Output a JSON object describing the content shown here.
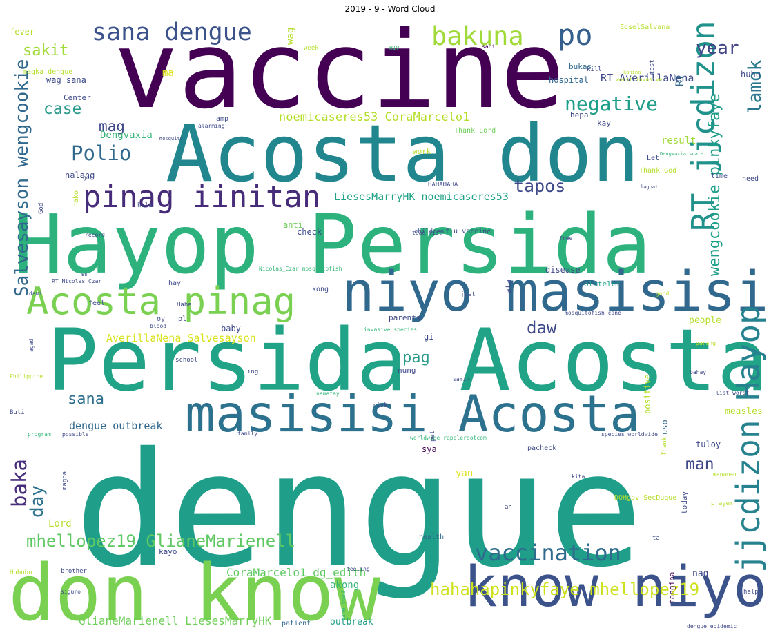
{
  "chart_data": {
    "type": "wordcloud",
    "title": "2019 - 9 - Word Cloud",
    "background": "#ffffff",
    "words": [
      {
        "text": "dengue",
        "color": "#1f9e89"
      },
      {
        "text": "vaccine",
        "color": "#440154"
      },
      {
        "text": "Acosta don",
        "color": "#21868d"
      },
      {
        "text": "Hayop Persida",
        "color": "#2db27d"
      },
      {
        "text": "Persida Acosta",
        "color": "#20a386"
      },
      {
        "text": "don know",
        "color": "#7ad151"
      },
      {
        "text": "know niyo",
        "color": "#3b528b"
      },
      {
        "text": "niyo masisisi",
        "color": "#31688e"
      },
      {
        "text": "masisisi Acosta",
        "color": "#2c728e"
      },
      {
        "text": "Acosta pinag",
        "color": "#7ad151"
      },
      {
        "text": "pinag iinitan",
        "color": "#472c7a"
      },
      {
        "text": "sana dengue",
        "color": "#3b528b"
      },
      {
        "text": "bakuna",
        "color": "#a0da39"
      },
      {
        "text": "po",
        "color": "#355f8d"
      },
      {
        "text": "RT jjcdizon",
        "color": "#21918c"
      },
      {
        "text": "jjcdizon Hayop",
        "color": "#26828e"
      },
      {
        "text": "wengcookie pinkyfaye",
        "color": "#1f9e89"
      },
      {
        "text": "Salvesayson wengcookie",
        "color": "#31688e"
      },
      {
        "text": "lamok",
        "color": "#2a788e"
      },
      {
        "text": "baka",
        "color": "#472d7b"
      },
      {
        "text": "day",
        "color": "#2c728e"
      },
      {
        "text": "year",
        "color": "#414487"
      },
      {
        "text": "sakit",
        "color": "#a0da39"
      },
      {
        "text": "case",
        "color": "#2a9a8a"
      },
      {
        "text": "mag",
        "color": "#3e4989"
      },
      {
        "text": "Polio",
        "color": "#31688e"
      },
      {
        "text": "Dengvaxia",
        "color": "#35b779"
      },
      {
        "text": "negative",
        "color": "#1f9e89"
      },
      {
        "text": "RT AverillaNena",
        "color": "#3e4989"
      },
      {
        "text": "noemicaseres53 CoraMarcelo1",
        "color": "#b5de2b"
      },
      {
        "text": "tapos",
        "color": "#3e4989"
      },
      {
        "text": "LiesesMarryHK noemicaseres53",
        "color": "#20a386"
      },
      {
        "text": "daw",
        "color": "#3e4989"
      },
      {
        "text": "pag",
        "color": "#2a9a8a"
      },
      {
        "text": "AverillaNena Salvesayson",
        "color": "#d8e219"
      },
      {
        "text": "sana",
        "color": "#2e6f8e"
      },
      {
        "text": "dengue outbreak",
        "color": "#31688e"
      },
      {
        "text": "man",
        "color": "#3e4989"
      },
      {
        "text": "vaccination",
        "color": "#2f6b8e"
      },
      {
        "text": "mhellopez19 GlianeMarienell",
        "color": "#5ec962"
      },
      {
        "text": "Lord",
        "color": "#b5de2b"
      },
      {
        "text": "CoraMarcelo1 dg_edith",
        "color": "#5ec962"
      },
      {
        "text": "hahahapinkyfaye mhellopez19",
        "color": "#cde11d"
      },
      {
        "text": "GlianeMarienell LiesesMarryHK",
        "color": "#6ece58"
      },
      {
        "text": "outbreak",
        "color": "#1f9e89"
      },
      {
        "text": "akong",
        "color": "#35b779"
      },
      {
        "text": "measles",
        "color": "#b5de2b"
      },
      {
        "text": "people",
        "color": "#b5de2b"
      },
      {
        "text": "result",
        "color": "#a0da39"
      },
      {
        "text": "Thank God",
        "color": "#b5de2b"
      },
      {
        "text": "check",
        "color": "#3e4989"
      },
      {
        "text": "anti",
        "color": "#6ece58"
      },
      {
        "text": "flu vaccine",
        "color": "#3e4989"
      },
      {
        "text": "hospital",
        "color": "#31688e"
      },
      {
        "text": "bukas",
        "color": "#31688e"
      },
      {
        "text": "wag sana",
        "color": "#3e4989"
      },
      {
        "text": "magka dengue",
        "color": "#b5de2b"
      },
      {
        "text": "fever",
        "color": "#b5de2b"
      },
      {
        "text": "ma",
        "color": "#dde318"
      },
      {
        "text": "nalang",
        "color": "#3e4989"
      },
      {
        "text": "platelet",
        "color": "#1f9e89"
      },
      {
        "text": "disease",
        "color": "#3e4989"
      },
      {
        "text": "baby",
        "color": "#3e4989"
      },
      {
        "text": "parents",
        "color": "#3e4989"
      },
      {
        "text": "nung",
        "color": "#3e4989"
      },
      {
        "text": "sya",
        "color": "#440154"
      },
      {
        "text": "uso",
        "color": "#31688e"
      },
      {
        "text": "positive",
        "color": "#b5de2b"
      },
      {
        "text": "tuloy",
        "color": "#3e4989"
      },
      {
        "text": "today",
        "color": "#3e4989"
      },
      {
        "text": "tangina",
        "color": "#440154"
      },
      {
        "text": "nag",
        "color": "#3e4989"
      },
      {
        "text": "kayo",
        "color": "#3e4989"
      },
      {
        "text": "DOHgov SecDuque",
        "color": "#b5de2b"
      },
      {
        "text": "health",
        "color": "#31688e"
      },
      {
        "text": "patient",
        "color": "#31688e"
      },
      {
        "text": "Huhuhu",
        "color": "#b5de2b"
      },
      {
        "text": "brother",
        "color": "#3e4989"
      },
      {
        "text": "Thank Lord",
        "color": "#6ece58"
      },
      {
        "text": "work",
        "color": "#b5de2b"
      },
      {
        "text": "HAHAHAHA",
        "color": "#3e4989"
      },
      {
        "text": "children",
        "color": "#3e4989"
      },
      {
        "text": "huhu",
        "color": "#3e4989"
      },
      {
        "text": "need",
        "color": "#3e4989"
      },
      {
        "text": "time",
        "color": "#3e4989"
      },
      {
        "text": "EdselSalvana",
        "color": "#b5de2b"
      },
      {
        "text": "kill",
        "color": "#3e4989"
      },
      {
        "text": "hepa",
        "color": "#3e4989"
      },
      {
        "text": "kay",
        "color": "#3e4989"
      },
      {
        "text": "Let",
        "color": "#3e4989"
      },
      {
        "text": "week",
        "color": "#b5de2b"
      },
      {
        "text": "Center",
        "color": "#3e4989"
      },
      {
        "text": "amp",
        "color": "#3e4989"
      },
      {
        "text": "yan",
        "color": "#dde318"
      },
      {
        "text": "ata",
        "color": "#3e4989"
      },
      {
        "text": "kong",
        "color": "#3e4989"
      },
      {
        "text": "gi",
        "color": "#3e4989"
      },
      {
        "text": "Haha",
        "color": "#3e4989"
      },
      {
        "text": "feel",
        "color": "#3e4989"
      },
      {
        "text": "oy",
        "color": "#3e4989"
      },
      {
        "text": "pl",
        "color": "#3e4989"
      },
      {
        "text": "pacheck",
        "color": "#3e4989"
      },
      {
        "text": "prayer",
        "color": "#b5de2b"
      },
      {
        "text": "help",
        "color": "#3e4989"
      },
      {
        "text": "dengue epidemic",
        "color": "#3e4989"
      },
      {
        "text": "invasive species",
        "color": "#35b779"
      },
      {
        "text": "mosquitofish cane",
        "color": "#3e4989"
      },
      {
        "text": "worldwide rapplerdotcom",
        "color": "#35b779"
      },
      {
        "text": "species worldwide",
        "color": "#3e4989"
      },
      {
        "text": "list worst",
        "color": "#3e4989"
      },
      {
        "text": "Buti",
        "color": "#3e4989"
      },
      {
        "text": "Philippine",
        "color": "#b5de2b"
      },
      {
        "text": "RT Nicolas_Czar",
        "color": "#3e4989"
      },
      {
        "text": "Nicolas_Czar mosquitofish",
        "color": "#35b779"
      },
      {
        "text": "hay",
        "color": "#3e4989"
      },
      {
        "text": "just",
        "color": "#3e4989"
      },
      {
        "text": "risk",
        "color": "#3e4989"
      },
      {
        "text": "ing",
        "color": "#3e4989"
      },
      {
        "text": "school",
        "color": "#3e4989"
      },
      {
        "text": "good",
        "color": "#b5de2b"
      },
      {
        "text": "kita",
        "color": "#3e4989"
      },
      {
        "text": "magpa",
        "color": "#3e4989"
      },
      {
        "text": "RT",
        "color": "#31688e"
      },
      {
        "text": "test",
        "color": "#3e4989"
      },
      {
        "text": "wag",
        "color": "#b5de2b"
      },
      {
        "text": "got",
        "color": "#3e4989"
      },
      {
        "text": "nako",
        "color": "#b5de2b"
      },
      {
        "text": "God",
        "color": "#3e4989"
      },
      {
        "text": "hala",
        "color": "#3e4989"
      },
      {
        "text": "family",
        "color": "#3e4989"
      },
      {
        "text": "program",
        "color": "#35b779"
      },
      {
        "text": "possible",
        "color": "#3e4989"
      },
      {
        "text": "record",
        "color": "#3e4989"
      },
      {
        "text": "agad",
        "color": "#3e4989"
      },
      {
        "text": "blood",
        "color": "#3e4989"
      },
      {
        "text": "dami",
        "color": "#3e4989"
      },
      {
        "text": "ah",
        "color": "#3e4989"
      },
      {
        "text": "ta",
        "color": "#3e4989"
      },
      {
        "text": "samin",
        "color": "#3e4989"
      },
      {
        "text": "namatay",
        "color": "#35b779"
      },
      {
        "text": "free",
        "color": "#3e4989"
      },
      {
        "text": "bahay",
        "color": "#3e4989"
      },
      {
        "text": "parang",
        "color": "#b5de2b"
      },
      {
        "text": "pet",
        "color": "#3e4989"
      },
      {
        "text": "Thank",
        "color": "#b5de2b"
      },
      {
        "text": "manaman",
        "color": "#b5de2b"
      },
      {
        "text": "feeling",
        "color": "#3e4989"
      },
      {
        "text": "cane toad",
        "color": "#35b779"
      },
      {
        "text": "siguro",
        "color": "#3e4989"
      },
      {
        "text": "toad list",
        "color": "#3e4989"
      },
      {
        "text": "sabi",
        "color": "#440154"
      },
      {
        "text": "HIV",
        "color": "#35b779"
      },
      {
        "text": "worst invasive",
        "color": "#b5de2b"
      },
      {
        "text": "kanina",
        "color": "#b5de2b"
      },
      {
        "text": "lagnat",
        "color": "#3e4989"
      },
      {
        "text": "Dengvaxia scare",
        "color": "#35b779"
      },
      {
        "text": "alarming",
        "color": "#3e4989"
      },
      {
        "text": "mosquito",
        "color": "#3e4989"
      },
      {
        "text": "E8",
        "color": "#3e4989"
      }
    ]
  }
}
